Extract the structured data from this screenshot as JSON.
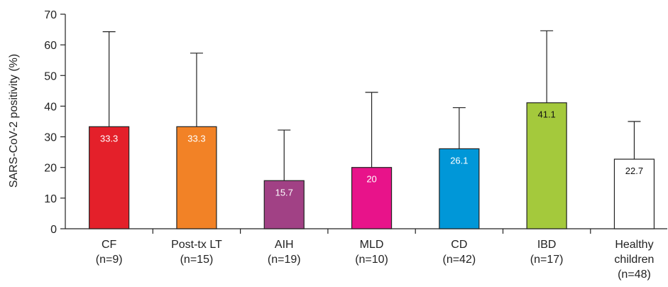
{
  "chart_data": {
    "type": "bar",
    "title": "",
    "xlabel": "",
    "ylabel": "SARS-CoV-2 positivity (%)",
    "ylim": [
      0,
      70
    ],
    "yticks": [
      0,
      10,
      20,
      30,
      40,
      50,
      60,
      70
    ],
    "grid": false,
    "categories": [
      {
        "name": "CF",
        "n": "(n=9)"
      },
      {
        "name": "Post-tx LT",
        "n": "(n=15)"
      },
      {
        "name": "AIH",
        "n": "(n=19)"
      },
      {
        "name": "MLD",
        "n": "(n=10)"
      },
      {
        "name": "CD",
        "n": "(n=42)"
      },
      {
        "name": "IBD",
        "n": "(n=17)"
      },
      {
        "name": "Healthy children",
        "n": "(n=48)"
      }
    ],
    "values": [
      33.3,
      33.3,
      15.7,
      20,
      26.1,
      41.1,
      22.7
    ],
    "value_labels": [
      "33.3",
      "33.3",
      "15.7",
      "20",
      "26.1",
      "41.1",
      "22.7"
    ],
    "error_upper": [
      64.3,
      57.3,
      32.2,
      44.5,
      39.5,
      64.6,
      35.0
    ],
    "colors": [
      "#e4202a",
      "#f28226",
      "#a14185",
      "#e8138a",
      "#0097d8",
      "#a4c93c",
      "#ffffff"
    ],
    "label_colors": [
      "#ffffff",
      "#ffffff",
      "#ffffff",
      "#ffffff",
      "#ffffff",
      "#111111",
      "#111111"
    ]
  }
}
